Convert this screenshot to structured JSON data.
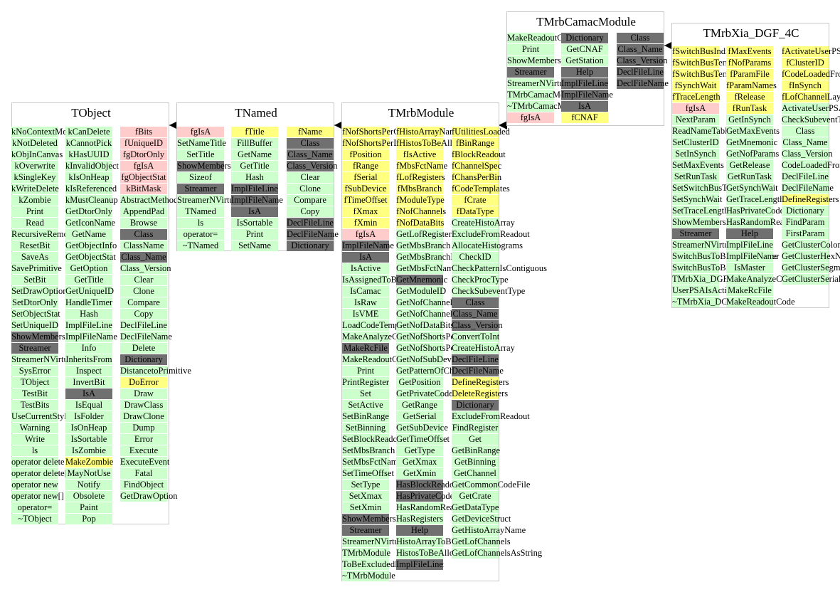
{
  "colors": {
    "function": "#ccffcc",
    "member": "#ffff80",
    "private": "#ffcccc",
    "standard": "#707070",
    "border": "#c8c8c8"
  },
  "classes": [
    {
      "name": "TObject",
      "columns": [
        [
          "kNoContextMenu",
          "kNotDeleted",
          "kObjInCanvas",
          "kOverwrite",
          "kSingleKey",
          "kWriteDelete",
          "kZombie",
          "Print",
          "Read",
          "RecursiveRemove",
          "ResetBit",
          "SaveAs",
          "SavePrimitive",
          "SetBit",
          "SetDrawOption",
          "SetDtorOnly",
          "SetObjectStat",
          "SetUniqueID",
          "ShowMembers",
          "Streamer",
          "StreamerNVirtual",
          "SysError",
          "TObject",
          "TestBit",
          "TestBits",
          "UseCurrentStyle",
          "Warning",
          "Write",
          "ls",
          "operator delete",
          "operator delete[]",
          "operator new",
          "operator new[]",
          "operator=",
          "~TObject"
        ],
        [
          "kCanDelete",
          "kCannotPick",
          "kHasUUID",
          "kInvalidObject",
          "kIsOnHeap",
          "kIsReferenced",
          "kMustCleanup",
          "GetDtorOnly",
          "GetIconName",
          "GetName",
          "GetObjectInfo",
          "GetObjectStat",
          "GetOption",
          "GetTitle",
          "GetUniqueID",
          "HandleTimer",
          "Hash",
          "ImplFileLine",
          "ImplFileName",
          "Info",
          "InheritsFrom",
          "Inspect",
          "InvertBit",
          "IsA",
          "IsEqual",
          "IsFolder",
          "IsOnHeap",
          "IsSortable",
          "IsZombie",
          "MakeZombie",
          "MayNotUse",
          "Notify",
          "Obsolete",
          "Paint",
          "Pop"
        ],
        [
          "fBits",
          "fUniqueID",
          "fgDtorOnly",
          "fgIsA",
          "fgObjectStat",
          "kBitMask",
          "AbstractMethod",
          "AppendPad",
          "Browse",
          "Class",
          "ClassName",
          "Class_Name",
          "Class_Version",
          "Clear",
          "Clone",
          "Compare",
          "Copy",
          "DeclFileLine",
          "DeclFileName",
          "Delete",
          "Dictionary",
          "DistancetoPrimitive",
          "DoError",
          "Draw",
          "DrawClass",
          "DrawClone",
          "Dump",
          "Error",
          "Execute",
          "ExecuteEvent",
          "Fatal",
          "FindObject",
          "GetDrawOption"
        ]
      ]
    },
    {
      "name": "TNamed",
      "columns": [
        [
          "fgIsA",
          "SetNameTitle",
          "SetTitle",
          "ShowMembers",
          "Sizeof",
          "Streamer",
          "StreamerNVirtual",
          "TNamed",
          "ls",
          "operator=",
          "~TNamed"
        ],
        [
          "fTitle",
          "FillBuffer",
          "GetName",
          "GetTitle",
          "Hash",
          "ImplFileLine",
          "ImplFileName",
          "IsA",
          "IsSortable",
          "Print",
          "SetName"
        ],
        [
          "fName",
          "Class",
          "Class_Name",
          "Class_Version",
          "Clear",
          "Clone",
          "Compare",
          "Copy",
          "DeclFileLine",
          "DeclFileName",
          "Dictionary"
        ]
      ]
    },
    {
      "name": "TMrbModule",
      "columns": [
        [
          "fNofShortsPerChannel",
          "fNofShortsPerDatum",
          "fPosition",
          "fRange",
          "fSerial",
          "fSubDevice",
          "fTimeOffset",
          "fXmax",
          "fXmin",
          "fgIsA",
          "ImplFileName",
          "IsA",
          "IsActive",
          "IsAssignedToBranch",
          "IsCamac",
          "IsRaw",
          "IsVME",
          "LoadCodeTemplates",
          "MakeAnalyzeCode",
          "MakeRcFile",
          "MakeReadoutCode",
          "Print",
          "PrintRegister",
          "Set",
          "SetActive",
          "SetBinRange",
          "SetBinning",
          "SetBlockReadout",
          "SetMbsBranch",
          "SetMbsFctName",
          "SetTimeOffset",
          "SetType",
          "SetXmax",
          "SetXmin",
          "ShowMembers",
          "Streamer",
          "StreamerNVirtual",
          "TMrbModule",
          "ToBeExcludedFromReadout",
          "~TMrbModule"
        ],
        [
          "fHistoArrayName",
          "fHistosToBeAllocated",
          "fIsActive",
          "fMbsFctName",
          "fLofRegisters",
          "fMbsBranch",
          "fModuleType",
          "fNofChannels",
          "fNofDataBits",
          "GetLofRegisters",
          "GetMbsBranch",
          "GetMbsBranchName",
          "GetMbsFctName",
          "GetMnemonic",
          "GetModuleID",
          "GetNofChannels",
          "GetNofChannelsUsed",
          "GetNofDataBits",
          "GetNofShortsPerChannel",
          "GetNofShortsPerDatum",
          "GetNofSubDevices",
          "GetPatternOfChannelsUsed",
          "GetPosition",
          "GetPrivateCodeFile",
          "GetRange",
          "GetSerial",
          "GetSubDevice",
          "GetTimeOffset",
          "GetType",
          "GetXmax",
          "GetXmin",
          "HasBlockReadout",
          "HasPrivateCode",
          "HasRandomReadout",
          "HasRegisters",
          "Help",
          "HistoArrayToBeCreated",
          "HistosToBeAllocated",
          "ImplFileLine"
        ],
        [
          "fUtilitiesLoaded",
          "fBinRange",
          "fBlockReadout",
          "fChannelSpec",
          "fChansPerBin",
          "fCodeTemplates",
          "fCrate",
          "fDataType",
          "CreateHistoArray",
          "ExcludeFromReadout",
          "AllocateHistograms",
          "CheckID",
          "CheckPatternIsContiguous",
          "CheckProcType",
          "CheckSubeventType",
          "Class",
          "Class_Name",
          "Class_Version",
          "ConvertToInt",
          "CreateHistoArray",
          "DeclFileLine",
          "DeclFileName",
          "DefineRegisters",
          "DeleteRegisters",
          "Dictionary",
          "ExcludeFromReadout",
          "FindRegister",
          "Get",
          "GetBinRange",
          "GetBinning",
          "GetChannel",
          "GetCommonCodeFile",
          "GetCrate",
          "GetDataType",
          "GetDeviceStruct",
          "GetHistoArrayName",
          "GetLofChannels",
          "GetLofChannelsAsString"
        ]
      ]
    },
    {
      "name": "TMrbCamacModule",
      "columns": [
        [
          "MakeReadoutCode",
          "Print",
          "ShowMembers",
          "Streamer",
          "StreamerNVirtual",
          "TMrbCamacModule",
          "~TMrbCamacModule",
          "fgIsA"
        ],
        [
          "Dictionary",
          "GetCNAF",
          "GetStation",
          "Help",
          "ImplFileLine",
          "ImplFileName",
          "IsA",
          "fCNAF"
        ],
        [
          "Class",
          "Class_Name",
          "Class_Version",
          "DeclFileLine",
          "DeclFileName"
        ]
      ]
    },
    {
      "name": "TMrbXia_DGF_4C",
      "columns": [
        [
          "fSwitchBusIndive",
          "fSwitchBusTerm",
          "fSwitchBusTermIfMaster",
          "fSynchWait",
          "fTraceLength",
          "fgIsA",
          "NextParam",
          "ReadNameTable",
          "SetClusterID",
          "SetInSynch",
          "SetMaxEvents",
          "SetRunTask",
          "SetSwitchBusTerm",
          "SetSynchWait",
          "SetTraceLength",
          "ShowMembers",
          "Streamer",
          "StreamerNVirtual",
          "SwitchBusToBeTermIfMaster",
          "SwitchBusToBeTerminated",
          "TMrbXia_DGF_4C",
          "UserPSAIsActive",
          "~TMrbXia_DGF_4C"
        ],
        [
          "fMaxEvents",
          "fNofParams",
          "fParamFile",
          "fParamNames",
          "fRelease",
          "fRunTask",
          "GetInSynch",
          "GetMaxEvents",
          "GetMnemonic",
          "GetNofParams",
          "GetRelease",
          "GetRunTask",
          "GetSynchWait",
          "GetTraceLength",
          "HasPrivateCode",
          "HasRandomReadout",
          "Help",
          "ImplFileLine",
          "ImplFileName",
          "IsMaster",
          "MakeAnalyzeCode",
          "MakeRcFile",
          "MakeReadoutCode"
        ],
        [
          "fActivateUserPSA",
          "fClusterID",
          "fCodeLoadedFromBinary",
          "fInSynch",
          "fLofChannelLayouts",
          "ActivateUserPSACode",
          "CheckSubeventType",
          "Class",
          "Class_Name",
          "Class_Version",
          "CodeLoadedFromBinary",
          "DeclFileLine",
          "DeclFileName",
          "DefineRegisters",
          "Dictionary",
          "FindParam",
          "FirstParam",
          "GetClusterColor",
          "GetClusterHexNum",
          "GetClusterSegments",
          "GetClusterSerial"
        ]
      ]
    }
  ]
}
